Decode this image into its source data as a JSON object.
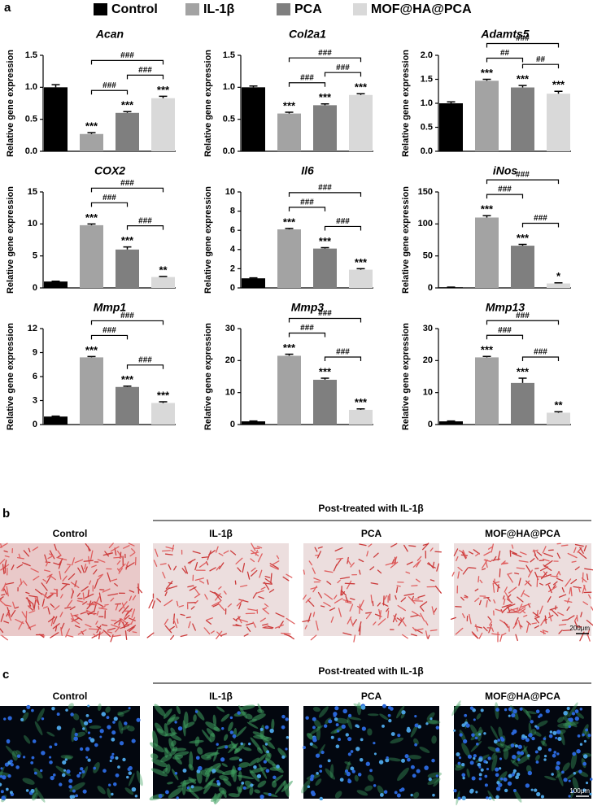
{
  "panel_a": {
    "label": "a",
    "legend": [
      {
        "name": "Control",
        "color": "#000000"
      },
      {
        "name": "IL-1β",
        "color": "#a3a3a3"
      },
      {
        "name": "PCA",
        "color": "#7f7f7f"
      },
      {
        "name": "MOF@HA@PCA",
        "color": "#d9d9d9"
      }
    ]
  },
  "chart_data": [
    {
      "type": "bar",
      "title": "Acan",
      "y_label": "Relative gene expression",
      "ylim": [
        0,
        1.5
      ],
      "yticks": [
        {
          "value": 0,
          "label": "0.0"
        },
        {
          "value": 0.5,
          "label": "0.5"
        },
        {
          "value": 1,
          "label": "1.0"
        },
        {
          "value": 1.5,
          "label": "1.5"
        }
      ],
      "values": [
        1.0,
        0.27,
        0.6,
        0.83
      ],
      "errors": [
        0.04,
        0.02,
        0.02,
        0.03
      ],
      "stars": [
        null,
        "***",
        "***",
        "***"
      ],
      "brackets": [
        {
          "label": "###",
          "pair": [
            1,
            2
          ]
        },
        {
          "label": "###",
          "pair": [
            2,
            3
          ]
        },
        {
          "label": "###",
          "pair": [
            1,
            3
          ]
        }
      ]
    },
    {
      "type": "bar",
      "title": "Col2a1",
      "y_label": "Relative gene expression",
      "ylim": [
        0,
        1.5
      ],
      "yticks": [
        {
          "value": 0,
          "label": "0.0"
        },
        {
          "value": 0.5,
          "label": "0.5"
        },
        {
          "value": 1,
          "label": "1.0"
        },
        {
          "value": 1.5,
          "label": "1.5"
        }
      ],
      "values": [
        1.0,
        0.59,
        0.72,
        0.88
      ],
      "errors": [
        0.02,
        0.02,
        0.02,
        0.02
      ],
      "stars": [
        null,
        "***",
        "***",
        "***"
      ],
      "brackets": [
        {
          "label": "###",
          "pair": [
            1,
            2
          ]
        },
        {
          "label": "###",
          "pair": [
            2,
            3
          ]
        },
        {
          "label": "###",
          "pair": [
            1,
            3
          ]
        }
      ]
    },
    {
      "type": "bar",
      "title": "Adamts5",
      "y_label": "Relative gene expression",
      "ylim": [
        0,
        2
      ],
      "yticks": [
        {
          "value": 0,
          "label": "0.0"
        },
        {
          "value": 0.5,
          "label": "0.5"
        },
        {
          "value": 1,
          "label": "1.0"
        },
        {
          "value": 1.5,
          "label": "1.5"
        },
        {
          "value": 2,
          "label": "2.0"
        }
      ],
      "values": [
        1.0,
        1.47,
        1.33,
        1.2
      ],
      "errors": [
        0.03,
        0.03,
        0.04,
        0.05
      ],
      "stars": [
        null,
        "***",
        "***",
        "***"
      ],
      "brackets": [
        {
          "label": "##",
          "pair": [
            1,
            2
          ]
        },
        {
          "label": "##",
          "pair": [
            2,
            3
          ]
        },
        {
          "label": "###",
          "pair": [
            1,
            3
          ]
        }
      ]
    },
    {
      "type": "bar",
      "title": "COX2",
      "y_label": "Relative gene expression",
      "ylim": [
        0,
        15
      ],
      "yticks": [
        0,
        5,
        10,
        15
      ],
      "values": [
        1.0,
        9.8,
        6.0,
        1.7
      ],
      "errors": [
        0.05,
        0.2,
        0.4,
        0.1
      ],
      "stars": [
        null,
        "***",
        "***",
        "**"
      ],
      "brackets": [
        {
          "label": "###",
          "pair": [
            1,
            2
          ]
        },
        {
          "label": "###",
          "pair": [
            2,
            3
          ]
        },
        {
          "label": "###",
          "pair": [
            1,
            3
          ]
        }
      ]
    },
    {
      "type": "bar",
      "title": "Il6",
      "y_label": "Relative gene expression",
      "ylim": [
        0,
        10
      ],
      "yticks": [
        0,
        2,
        4,
        6,
        8,
        10
      ],
      "values": [
        1.0,
        6.1,
        4.1,
        1.9
      ],
      "errors": [
        0.05,
        0.1,
        0.1,
        0.1
      ],
      "stars": [
        null,
        "***",
        "***",
        "***"
      ],
      "brackets": [
        {
          "label": "###",
          "pair": [
            1,
            2
          ]
        },
        {
          "label": "###",
          "pair": [
            2,
            3
          ]
        },
        {
          "label": "###",
          "pair": [
            1,
            3
          ]
        }
      ]
    },
    {
      "type": "bar",
      "title": "iNos",
      "y_label": "Relative gene expression",
      "ylim": [
        0,
        150
      ],
      "yticks": [
        0,
        50,
        100,
        150
      ],
      "values": [
        1.0,
        110,
        66,
        7
      ],
      "errors": [
        0.2,
        3,
        2,
        1
      ],
      "stars": [
        null,
        "***",
        "***",
        "*"
      ],
      "brackets": [
        {
          "label": "###",
          "pair": [
            1,
            2
          ]
        },
        {
          "label": "###",
          "pair": [
            2,
            3
          ]
        },
        {
          "label": "###",
          "pair": [
            1,
            3
          ]
        }
      ]
    },
    {
      "type": "bar",
      "title": "Mmp1",
      "y_label": "Relative gene expression",
      "ylim": [
        0,
        12
      ],
      "yticks": [
        0,
        3,
        6,
        9,
        12
      ],
      "values": [
        1.0,
        8.4,
        4.7,
        2.7
      ],
      "errors": [
        0.05,
        0.1,
        0.1,
        0.15
      ],
      "stars": [
        null,
        "***",
        "***",
        "***"
      ],
      "brackets": [
        {
          "label": "###",
          "pair": [
            1,
            2
          ]
        },
        {
          "label": "###",
          "pair": [
            2,
            3
          ]
        },
        {
          "label": "###",
          "pair": [
            1,
            3
          ]
        }
      ]
    },
    {
      "type": "bar",
      "title": "Mmp3",
      "y_label": "Relative gene expression",
      "ylim": [
        0,
        30
      ],
      "yticks": [
        0,
        10,
        20,
        30
      ],
      "values": [
        1.0,
        21.5,
        14,
        4.6
      ],
      "errors": [
        0.1,
        0.5,
        0.5,
        0.3
      ],
      "stars": [
        null,
        "***",
        "***",
        "***"
      ],
      "brackets": [
        {
          "label": "###",
          "pair": [
            1,
            2
          ]
        },
        {
          "label": "###",
          "pair": [
            2,
            3
          ]
        },
        {
          "label": "###",
          "pair": [
            1,
            3
          ]
        }
      ]
    },
    {
      "type": "bar",
      "title": "Mmp13",
      "y_label": "Relative gene expression",
      "ylim": [
        0,
        30
      ],
      "yticks": [
        0,
        10,
        20,
        30
      ],
      "values": [
        1.0,
        21,
        13,
        3.7
      ],
      "errors": [
        0.1,
        0.3,
        1.5,
        0.3
      ],
      "stars": [
        null,
        "***",
        "***",
        "**"
      ],
      "brackets": [
        {
          "label": "###",
          "pair": [
            1,
            2
          ]
        },
        {
          "label": "###",
          "pair": [
            2,
            3
          ]
        },
        {
          "label": "###",
          "pair": [
            1,
            3
          ]
        }
      ]
    }
  ],
  "panel_b": {
    "label": "b",
    "header": "Post-treated with IL-1β",
    "images": [
      "Control",
      "IL-1β",
      "PCA",
      "MOF@HA@PCA"
    ],
    "scale_bar": "200μm"
  },
  "panel_c": {
    "label": "c",
    "header": "Post-treated with IL-1β",
    "images": [
      "Control",
      "IL-1β",
      "PCA",
      "MOF@HA@PCA"
    ],
    "scale_bar": "100μm"
  }
}
